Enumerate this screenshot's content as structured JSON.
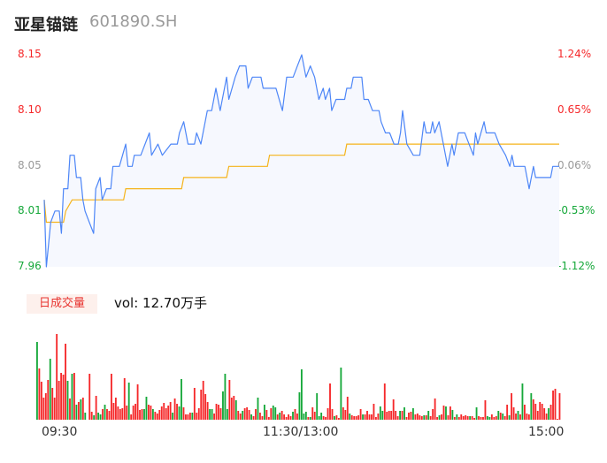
{
  "header": {
    "name": "亚星锚链",
    "code": "601890.SH"
  },
  "colors": {
    "price_line": "#4d86f7",
    "avg_line": "#f5b31a",
    "area_fill": "#f6f8fe",
    "up": "#f5282a",
    "down": "#16a83a",
    "neutral": "#999999"
  },
  "volume_panel": {
    "tab_label": "日成交量",
    "vol_text": "vol: 12.70万手"
  },
  "chart_data": [
    {
      "type": "line",
      "ylim": [
        7.96,
        8.15
      ],
      "left_ticks": [
        {
          "label": "8.15",
          "value": 8.15,
          "color": "up"
        },
        {
          "label": "8.10",
          "value": 8.1,
          "color": "up"
        },
        {
          "label": "8.05",
          "value": 8.05,
          "color": "neutral"
        },
        {
          "label": "8.01",
          "value": 8.01,
          "color": "down"
        },
        {
          "label": "7.96",
          "value": 7.96,
          "color": "down"
        }
      ],
      "right_ticks": [
        {
          "label": "1.24%",
          "value": 8.15,
          "color": "up"
        },
        {
          "label": "0.65%",
          "value": 8.1,
          "color": "up"
        },
        {
          "label": "0.06%",
          "value": 8.05,
          "color": "neutral"
        },
        {
          "label": "-0.53%",
          "value": 8.01,
          "color": "down"
        },
        {
          "label": "-1.12%",
          "value": 7.96,
          "color": "down"
        }
      ],
      "x_ticks": [
        "09:30",
        "11:30/13:00",
        "15:00"
      ],
      "series": [
        {
          "key": "price",
          "points": [
            [
              "09:30",
              8.02
            ],
            [
              "09:31",
              7.96
            ],
            [
              "09:33",
              8.0
            ],
            [
              "09:35",
              8.01
            ],
            [
              "09:37",
              8.01
            ],
            [
              "09:38",
              7.99
            ],
            [
              "09:39",
              8.03
            ],
            [
              "09:41",
              8.03
            ],
            [
              "09:42",
              8.06
            ],
            [
              "09:44",
              8.06
            ],
            [
              "09:45",
              8.04
            ],
            [
              "09:47",
              8.04
            ],
            [
              "09:48",
              8.02
            ],
            [
              "09:49",
              8.01
            ],
            [
              "09:51",
              8.0
            ],
            [
              "09:53",
              7.99
            ],
            [
              "09:54",
              8.03
            ],
            [
              "09:56",
              8.04
            ],
            [
              "09:57",
              8.02
            ],
            [
              "09:59",
              8.03
            ],
            [
              "10:01",
              8.03
            ],
            [
              "10:02",
              8.05
            ],
            [
              "10:05",
              8.05
            ],
            [
              "10:08",
              8.07
            ],
            [
              "10:09",
              8.05
            ],
            [
              "10:11",
              8.05
            ],
            [
              "10:12",
              8.06
            ],
            [
              "10:15",
              8.06
            ],
            [
              "10:19",
              8.08
            ],
            [
              "10:20",
              8.06
            ],
            [
              "10:23",
              8.07
            ],
            [
              "10:25",
              8.06
            ],
            [
              "10:29",
              8.07
            ],
            [
              "10:32",
              8.07
            ],
            [
              "10:33",
              8.08
            ],
            [
              "10:35",
              8.09
            ],
            [
              "10:37",
              8.07
            ],
            [
              "10:40",
              8.07
            ],
            [
              "10:41",
              8.08
            ],
            [
              "10:43",
              8.07
            ],
            [
              "10:46",
              8.1
            ],
            [
              "10:48",
              8.1
            ],
            [
              "10:50",
              8.12
            ],
            [
              "10:52",
              8.1
            ],
            [
              "10:55",
              8.13
            ],
            [
              "10:56",
              8.11
            ],
            [
              "10:59",
              8.13
            ],
            [
              "11:01",
              8.14
            ],
            [
              "11:04",
              8.14
            ],
            [
              "11:05",
              8.12
            ],
            [
              "11:07",
              8.13
            ],
            [
              "11:11",
              8.13
            ],
            [
              "11:12",
              8.12
            ],
            [
              "11:18",
              8.12
            ],
            [
              "11:21",
              8.1
            ],
            [
              "11:23",
              8.13
            ],
            [
              "11:26",
              8.13
            ],
            [
              "11:28",
              8.14
            ],
            [
              "11:30",
              8.15
            ],
            [
              "13:02",
              8.13
            ],
            [
              "13:04",
              8.14
            ],
            [
              "13:06",
              8.13
            ],
            [
              "13:08",
              8.11
            ],
            [
              "13:10",
              8.12
            ],
            [
              "13:11",
              8.11
            ],
            [
              "13:13",
              8.12
            ],
            [
              "13:14",
              8.1
            ],
            [
              "13:16",
              8.11
            ],
            [
              "13:20",
              8.11
            ],
            [
              "13:21",
              8.12
            ],
            [
              "13:23",
              8.12
            ],
            [
              "13:24",
              8.13
            ],
            [
              "13:28",
              8.13
            ],
            [
              "13:29",
              8.11
            ],
            [
              "13:31",
              8.11
            ],
            [
              "13:33",
              8.1
            ],
            [
              "13:36",
              8.1
            ],
            [
              "13:37",
              8.09
            ],
            [
              "13:39",
              8.08
            ],
            [
              "13:41",
              8.08
            ],
            [
              "13:43",
              8.07
            ],
            [
              "13:45",
              8.07
            ],
            [
              "13:46",
              8.08
            ],
            [
              "13:47",
              8.1
            ],
            [
              "13:49",
              8.07
            ],
            [
              "13:52",
              8.06
            ],
            [
              "13:55",
              8.06
            ],
            [
              "13:57",
              8.09
            ],
            [
              "13:58",
              8.08
            ],
            [
              "14:00",
              8.08
            ],
            [
              "14:01",
              8.09
            ],
            [
              "14:02",
              8.08
            ],
            [
              "14:04",
              8.09
            ],
            [
              "14:06",
              8.07
            ],
            [
              "14:08",
              8.05
            ],
            [
              "14:10",
              8.07
            ],
            [
              "14:11",
              8.06
            ],
            [
              "14:13",
              8.08
            ],
            [
              "14:16",
              8.08
            ],
            [
              "14:18",
              8.07
            ],
            [
              "14:20",
              8.06
            ],
            [
              "14:21",
              8.08
            ],
            [
              "14:22",
              8.07
            ],
            [
              "14:25",
              8.09
            ],
            [
              "14:26",
              8.08
            ],
            [
              "14:30",
              8.08
            ],
            [
              "14:32",
              8.07
            ],
            [
              "14:35",
              8.06
            ],
            [
              "14:37",
              8.05
            ],
            [
              "14:38",
              8.06
            ],
            [
              "14:39",
              8.05
            ],
            [
              "14:44",
              8.05
            ],
            [
              "14:45",
              8.04
            ],
            [
              "14:46",
              8.03
            ],
            [
              "14:48",
              8.05
            ],
            [
              "14:49",
              8.04
            ],
            [
              "14:56",
              8.04
            ],
            [
              "14:57",
              8.05
            ],
            [
              "15:00",
              8.05
            ]
          ]
        },
        {
          "key": "average",
          "points": [
            [
              "09:30",
              8.02
            ],
            [
              "09:31",
              8.0
            ],
            [
              "09:39",
              8.0
            ],
            [
              "09:40",
              8.01
            ],
            [
              "09:43",
              8.02
            ],
            [
              "10:07",
              8.02
            ],
            [
              "10:08",
              8.03
            ],
            [
              "10:34",
              8.03
            ],
            [
              "10:35",
              8.04
            ],
            [
              "10:55",
              8.04
            ],
            [
              "10:56",
              8.05
            ],
            [
              "11:14",
              8.05
            ],
            [
              "11:15",
              8.06
            ],
            [
              "13:20",
              8.06
            ],
            [
              "13:21",
              8.07
            ],
            [
              "15:00",
              8.07
            ]
          ]
        }
      ]
    },
    {
      "type": "bar",
      "values": [
        88,
        58,
        43,
        25,
        30,
        45,
        69,
        36,
        25,
        97,
        44,
        53,
        51,
        86,
        44,
        24,
        52,
        53,
        17,
        20,
        23,
        25,
        8,
        0,
        52,
        9,
        5,
        27,
        8,
        6,
        12,
        17,
        12,
        10,
        52,
        19,
        25,
        15,
        12,
        13,
        47,
        16,
        42,
        6,
        16,
        18,
        40,
        11,
        12,
        12,
        26,
        17,
        16,
        12,
        9,
        7,
        11,
        15,
        19,
        13,
        16,
        20,
        8,
        24,
        18,
        15,
        46,
        14,
        6,
        6,
        8,
        8,
        36,
        8,
        13,
        34,
        44,
        29,
        20,
        12,
        12,
        7,
        18,
        17,
        13,
        32,
        52,
        12,
        45,
        25,
        27,
        22,
        10,
        7,
        10,
        13,
        14,
        11,
        6,
        4,
        12,
        25,
        8,
        4,
        17,
        11,
        3,
        13,
        16,
        14,
        6,
        8,
        10,
        6,
        3,
        6,
        4,
        9,
        12,
        7,
        31,
        57,
        7,
        9,
        3,
        3,
        14,
        9,
        30,
        4,
        8,
        4,
        3,
        13,
        41,
        12,
        4,
        5,
        2,
        59,
        14,
        11,
        26,
        7,
        5,
        4,
        4,
        5,
        12,
        6,
        6,
        10,
        6,
        6,
        18,
        3,
        7,
        15,
        10,
        41,
        9,
        10,
        10,
        23,
        10,
        4,
        10,
        10,
        14,
        3,
        8,
        9,
        13,
        6,
        7,
        5,
        4,
        5,
        5,
        10,
        4,
        12,
        24,
        3,
        5,
        6,
        16,
        15,
        5,
        15,
        11,
        3,
        6,
        3,
        6,
        4,
        5,
        4,
        4,
        4,
        2,
        14,
        4,
        3,
        3,
        22,
        4,
        3,
        6,
        3,
        4,
        10,
        8,
        7,
        4,
        17,
        5,
        30,
        14,
        7,
        10,
        6,
        41,
        17,
        7,
        6,
        30,
        23,
        18,
        10,
        20,
        18,
        13,
        7,
        13,
        17,
        33,
        35,
        1,
        30
      ],
      "directions": "grrrrrgrrrrrrrgrgrgrgrg-rrgrggrgrrrrrrrrrrgrrrrrrggrrgrrrrrrrrgrrgg rrrrgrrrrrrrggrrrrgggrrrgrrgrrrgrrgrrgrrrggrgrrrrrgrrggggrgrrgggrrrrrgrrgrrrgrrrrrgrrrrrrrggrrrrrrrgrgrrrgrrrrgrgrrrrgrrgrrgrgrrrrrgrrgrrrrggrrrgrgrrgrrrgrgrrrgrrrrrrrg",
      "ylim": [
        0,
        100
      ]
    }
  ]
}
